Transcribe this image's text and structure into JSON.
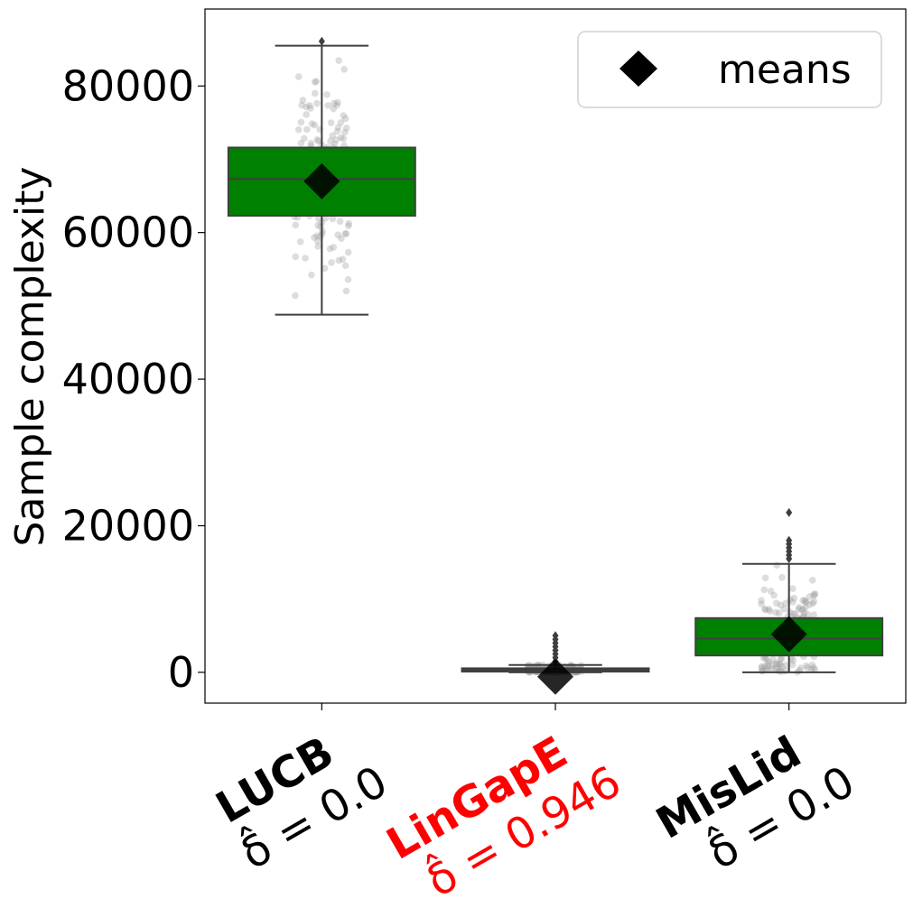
{
  "chart_data": {
    "type": "box",
    "ylabel": "Sample complexity",
    "ylim": [
      -4200,
      90500
    ],
    "yticks": [
      0,
      20000,
      40000,
      60000,
      80000
    ],
    "ytick_labels": [
      "0",
      "20000",
      "40000",
      "60000",
      "80000"
    ],
    "legend": {
      "label": "means",
      "marker": "diamond",
      "placement": "top-right"
    },
    "grid": false,
    "categories": [
      {
        "name": "LUCB",
        "delta_label": "δ̂ = 0.0",
        "name_color": "#000000",
        "delta_color": "#000000"
      },
      {
        "name": "LinGapE",
        "delta_label": "δ̂ = 0.946",
        "name_color": "#ff0000",
        "delta_color": "#ff0000"
      },
      {
        "name": "MisLid",
        "delta_label": "δ̂ = 0.0",
        "name_color": "#000000",
        "delta_color": "#000000"
      }
    ],
    "boxes": [
      {
        "whisker_low": 48800,
        "q1": 62300,
        "median": 67300,
        "q3": 71600,
        "whisker_high": 85500,
        "mean": 67000,
        "outliers": [
          86100
        ],
        "fill": "#008000"
      },
      {
        "whisker_low": 0,
        "q1": 100,
        "median": 350,
        "q3": 550,
        "whisker_high": 1000,
        "mean": -600,
        "outliers": [
          1500,
          2000,
          2500,
          3000,
          3500,
          4000,
          4500,
          5000
        ],
        "fill": "#008000"
      },
      {
        "whisker_low": 0,
        "q1": 2300,
        "median": 4600,
        "q3": 7400,
        "whisker_high": 14800,
        "mean": 5200,
        "outliers": [
          15500,
          16000,
          16500,
          17000,
          17500,
          18000,
          21800
        ],
        "fill": "#008000"
      }
    ],
    "colors": {
      "box_fill": "#008000",
      "box_edge": "#3f3f3f",
      "points": "#9e9e9e",
      "mean_marker": "#000000"
    }
  }
}
